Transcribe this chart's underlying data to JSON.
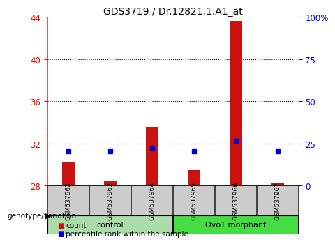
{
  "title": "GDS3719 / Dr.12821.1.A1_at",
  "samples": [
    "GSM537962",
    "GSM537963",
    "GSM537964",
    "GSM537965",
    "GSM537966",
    "GSM537967"
  ],
  "groups": [
    "control",
    "control",
    "control",
    "Ovo1 morphant",
    "Ovo1 morphant",
    "Ovo1 morphant"
  ],
  "counts": [
    30.2,
    28.5,
    33.6,
    29.5,
    43.6,
    28.2
  ],
  "percentiles": [
    20.5,
    20.5,
    22.0,
    20.5,
    26.5,
    20.5
  ],
  "ylim_left": [
    28,
    44
  ],
  "ylim_right": [
    0,
    100
  ],
  "yticks_left": [
    28,
    32,
    36,
    40,
    44
  ],
  "yticks_right": [
    0,
    25,
    50,
    75,
    100
  ],
  "ytick_labels_right": [
    "0",
    "25",
    "50",
    "75",
    "100%"
  ],
  "bar_color": "#cc1111",
  "marker_color": "#0000cc",
  "control_group_color": "#aaddaa",
  "morphant_group_color": "#44dd44",
  "bg_color": "#ffffff",
  "col_bg": "#cccccc",
  "legend_count_color": "#cc1111",
  "legend_pct_color": "#0000cc"
}
